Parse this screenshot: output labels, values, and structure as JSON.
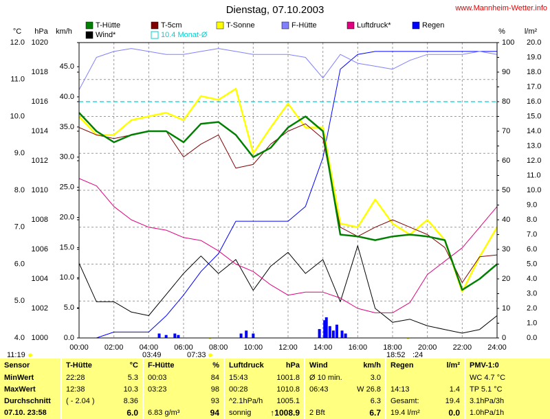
{
  "chart_data": {
    "type": "line",
    "title": "Dienstag, 07.10.2003",
    "source": "www.Mannheim-Wetter.info",
    "x": [
      0,
      1,
      2,
      3,
      4,
      5,
      6,
      7,
      8,
      9,
      10,
      11,
      12,
      13,
      14,
      15,
      16,
      17,
      18,
      19,
      20,
      21,
      22,
      23,
      24
    ],
    "xlim": [
      0,
      24
    ],
    "xticks": [
      {
        "value": 0,
        "label": "00:00"
      },
      {
        "value": 2,
        "label": "02:00"
      },
      {
        "value": 4,
        "label": "04:00"
      },
      {
        "value": 6,
        "label": "06:00"
      },
      {
        "value": 8,
        "label": "08:00"
      },
      {
        "value": 10,
        "label": "10:00"
      },
      {
        "value": 12,
        "label": "12:00"
      },
      {
        "value": 14,
        "label": "14:00"
      },
      {
        "value": 16,
        "label": "16:00"
      },
      {
        "value": 18,
        "label": "18:00"
      },
      {
        "value": 20,
        "label": "20:00"
      },
      {
        "value": 22,
        "label": "22:00"
      },
      {
        "value": 24,
        "label": "24:00"
      }
    ],
    "ylabel": "°C",
    "ylim": [
      4,
      12
    ],
    "yticks": [
      {
        "value": 4,
        "label": "4.0"
      },
      {
        "value": 5,
        "label": "5.0"
      },
      {
        "value": 6,
        "label": "6.0"
      },
      {
        "value": 7,
        "label": "7.0"
      },
      {
        "value": 8,
        "label": "8.0"
      },
      {
        "value": 9,
        "label": "9.0"
      },
      {
        "value": 10,
        "label": "10.0"
      },
      {
        "value": 11,
        "label": "11.0"
      },
      {
        "value": 12,
        "label": "12.0"
      }
    ],
    "y2label": "hPa",
    "y2lim": [
      1000,
      1020
    ],
    "y2ticks": [
      1000,
      1002,
      1004,
      1006,
      1008,
      1010,
      1012,
      1014,
      1016,
      1018,
      1020
    ],
    "y3label": "km/h",
    "y3lim": [
      0,
      49
    ],
    "y3ticks": [
      {
        "value": 0,
        "label": "0.0"
      },
      {
        "value": 5,
        "label": "5.0"
      },
      {
        "value": 10,
        "label": "10.0"
      },
      {
        "value": 15,
        "label": "15.0"
      },
      {
        "value": 20,
        "label": "20.0"
      },
      {
        "value": 25,
        "label": "25.0"
      },
      {
        "value": 30,
        "label": "30.0"
      },
      {
        "value": 35,
        "label": "35.0"
      },
      {
        "value": 40,
        "label": "40.0"
      },
      {
        "value": 45,
        "label": "45.0"
      }
    ],
    "y4label": "%",
    "y4lim": [
      0,
      100
    ],
    "y4ticks": [
      0,
      10,
      20,
      30,
      40,
      50,
      60,
      70,
      80,
      90,
      100
    ],
    "y5label": "l/m²",
    "y5lim": [
      0,
      20
    ],
    "y5ticks": [
      {
        "value": 0,
        "label": "0.0"
      },
      {
        "value": 1,
        "label": "1.0"
      },
      {
        "value": 2,
        "label": "2.0"
      },
      {
        "value": 3,
        "label": "3.0"
      },
      {
        "value": 4,
        "label": "4.0"
      },
      {
        "value": 5,
        "label": "5.0"
      },
      {
        "value": 6,
        "label": "6.0"
      },
      {
        "value": 7,
        "label": "7.0"
      },
      {
        "value": 8,
        "label": "8.0"
      },
      {
        "value": 9,
        "label": "9.0"
      },
      {
        "value": 10,
        "label": "10.0"
      },
      {
        "value": 11,
        "label": "11.0"
      },
      {
        "value": 12,
        "label": "12.0"
      },
      {
        "value": 13,
        "label": "13.0"
      },
      {
        "value": 14,
        "label": "14.0"
      },
      {
        "value": 15,
        "label": "15.0"
      },
      {
        "value": 16,
        "label": "16.0"
      },
      {
        "value": 17,
        "label": "17.0"
      },
      {
        "value": 18,
        "label": "18.0"
      },
      {
        "value": 19,
        "label": "19.0"
      },
      {
        "value": 20,
        "label": "20.0"
      }
    ],
    "grid": true,
    "series": [
      {
        "name": "T-Hütte",
        "color": "#008000",
        "axis": "y",
        "line_width": 2.5,
        "values": [
          10.1,
          9.6,
          9.3,
          9.5,
          9.6,
          9.6,
          9.3,
          9.8,
          9.85,
          9.5,
          8.9,
          9.15,
          9.7,
          10.0,
          9.6,
          6.8,
          6.75,
          6.65,
          6.75,
          6.8,
          6.75,
          6.65,
          5.3,
          5.6,
          6.0
        ]
      },
      {
        "name": "T-5cm",
        "color": "#800000",
        "axis": "y",
        "line_width": 1,
        "values": [
          9.7,
          9.5,
          9.4,
          9.5,
          9.6,
          9.6,
          8.9,
          9.25,
          9.5,
          8.6,
          8.7,
          9.25,
          9.6,
          9.8,
          9.4,
          7.0,
          6.75,
          7.0,
          7.2,
          7.0,
          6.8,
          6.45,
          5.5,
          6.2,
          6.25
        ]
      },
      {
        "name": "T-Sonne",
        "color": "#ffff00",
        "axis": "y",
        "line_width": 2.5,
        "values": [
          10.0,
          9.5,
          9.5,
          9.9,
          10.0,
          10.1,
          9.9,
          10.55,
          10.45,
          10.75,
          9.0,
          9.7,
          10.35,
          9.7,
          9.7,
          7.1,
          7.0,
          7.75,
          7.1,
          6.8,
          7.2,
          6.65,
          5.25,
          6.2,
          7.0
        ]
      },
      {
        "name": "F-Hütte",
        "color": "#8080ff",
        "axis": "y4",
        "line_width": 1,
        "values": [
          84,
          95,
          97,
          98,
          97,
          96,
          96,
          97,
          98,
          97,
          96,
          96,
          96,
          95,
          88,
          96,
          93,
          92,
          91,
          94,
          96,
          96,
          96,
          97,
          96
        ]
      },
      {
        "name": "Luftdruck*",
        "color": "#e0007f",
        "axis": "y2",
        "line_width": 1,
        "values": [
          1010.8,
          1010.3,
          1008.9,
          1008,
          1007.5,
          1007.3,
          1006.8,
          1006.6,
          1005.9,
          1005,
          1004.5,
          1003.6,
          1002.9,
          1003.1,
          1003.1,
          1002.7,
          1002,
          1001.7,
          1001.7,
          1002.4,
          1004.3,
          1005.2,
          1006.1,
          1007.5,
          1008.9
        ]
      },
      {
        "name": "Regen",
        "color": "#0000ff",
        "axis": "y5",
        "line_width": 1,
        "values": [
          0,
          0,
          0.4,
          0.4,
          0.4,
          1.5,
          2.9,
          4.5,
          5.7,
          7.9,
          7.9,
          7.9,
          7.9,
          8.9,
          12.2,
          18.2,
          19.2,
          19.4,
          19.4,
          19.4,
          19.4,
          19.4,
          19.4,
          19.4,
          19.4
        ],
        "bar_x": [
          4.6,
          5.0,
          5.5,
          5.7,
          9.3,
          9.6,
          10.0,
          13.8,
          14.1,
          14.2,
          14.4,
          14.6,
          14.8,
          15.1,
          15.3
        ],
        "bar_values": [
          0.3,
          0.2,
          0.3,
          0.2,
          0.3,
          0.5,
          0.3,
          0.6,
          1.2,
          1.4,
          0.8,
          0.5,
          0.9,
          0.5,
          0.3
        ]
      },
      {
        "name": "Wind*",
        "color": "#000000",
        "axis": "y3",
        "line_width": 1,
        "values": [
          12.4,
          6,
          6,
          4.3,
          3.7,
          7.2,
          10.7,
          13.6,
          10.7,
          13,
          7.9,
          11.9,
          14.2,
          10.7,
          13,
          6,
          15.3,
          4.9,
          2.6,
          3.1,
          2,
          1.4,
          0.8,
          1.4,
          3.7
        ]
      }
    ],
    "reference": {
      "name": "10.4 Monat-Ø",
      "value": 10.4,
      "color": "#00d0d0",
      "axis": "y"
    },
    "annotations": [
      "11:19",
      "03:49",
      "07:33",
      "18:52",
      ":24"
    ]
  },
  "table": {
    "columns": [
      {
        "title": "Sensor"
      },
      {
        "title": "T-Hütte",
        "unit": "°C"
      },
      {
        "title": "F-Hütte",
        "unit": "%"
      },
      {
        "title": "Luftdruck",
        "unit": "hPa"
      },
      {
        "title": "Wind",
        "unit": "km/h"
      },
      {
        "title": "Regen",
        "unit": "l/m²"
      },
      {
        "title": "PMV-1:0"
      }
    ],
    "rows": [
      {
        "label": "MinWert",
        "cells": [
          [
            "22:28",
            "5.3"
          ],
          [
            "00:03",
            "84"
          ],
          [
            "15:43",
            "1001.8"
          ],
          [
            "Ø 10 min.",
            "3.0"
          ],
          [
            null,
            null
          ],
          [
            "WC 4.7 °C"
          ]
        ]
      },
      {
        "label": "MaxWert",
        "cells": [
          [
            "12:38",
            "10.3"
          ],
          [
            "03:23",
            "98"
          ],
          [
            "00:28",
            "1010.8"
          ],
          [
            "06:43",
            "W 26.8"
          ],
          [
            "14:13",
            "1.4"
          ],
          [
            "TP 5.1 °C"
          ]
        ]
      },
      {
        "label": "Durchschnitt",
        "cells": [
          [
            "( - 2.04 )",
            "8.36"
          ],
          [
            null,
            "93"
          ],
          [
            "^2.1hPa/h",
            "1005.1"
          ],
          [
            null,
            "6.3"
          ],
          [
            "Gesamt:",
            "19.4"
          ],
          [
            "3.1hPa/3h"
          ]
        ]
      },
      {
        "label": "07.10. 23:58",
        "cells": [
          [
            null,
            "6.0"
          ],
          [
            "6.83 g/m³",
            "94"
          ],
          [
            "sonnig",
            "↑1008.9"
          ],
          [
            "2 Bft",
            "6.7"
          ],
          [
            "19.4 l/m²",
            "0.0"
          ],
          [
            "1.0hPa/1h"
          ]
        ]
      }
    ]
  }
}
